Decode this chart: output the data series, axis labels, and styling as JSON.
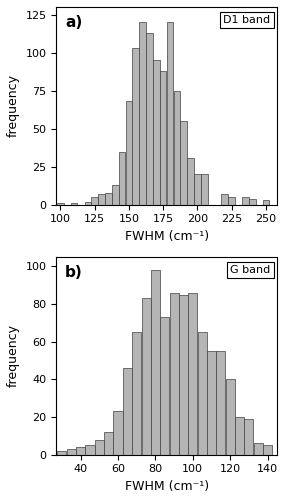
{
  "d1_bin_centers": [
    100,
    105,
    110,
    115,
    120,
    125,
    130,
    135,
    140,
    145,
    150,
    155,
    160,
    165,
    170,
    175,
    180,
    185,
    190,
    195,
    200,
    205,
    210,
    215,
    220,
    225,
    230,
    235,
    240,
    245,
    250
  ],
  "d1_counts": [
    1,
    0,
    1,
    0,
    2,
    5,
    7,
    8,
    13,
    35,
    68,
    103,
    120,
    113,
    95,
    88,
    120,
    75,
    55,
    31,
    20,
    20,
    0,
    0,
    7,
    5,
    0,
    5,
    4,
    0,
    3
  ],
  "d1_xlim": [
    97,
    258
  ],
  "d1_ylim": [
    0,
    130
  ],
  "d1_yticks": [
    0,
    25,
    50,
    75,
    100,
    125
  ],
  "d1_xticks": [
    100,
    125,
    150,
    175,
    200,
    225,
    250
  ],
  "d1_label": "D1 band",
  "d1_sublabel": "a)",
  "g_bin_centers": [
    30,
    35,
    40,
    45,
    50,
    55,
    60,
    65,
    70,
    75,
    80,
    85,
    90,
    95,
    100,
    105,
    110,
    115,
    120,
    125,
    130,
    135,
    140
  ],
  "g_counts": [
    2,
    3,
    4,
    5,
    8,
    12,
    23,
    46,
    65,
    83,
    98,
    73,
    86,
    85,
    86,
    65,
    55,
    55,
    40,
    20,
    19,
    6,
    5
  ],
  "g_xlim": [
    27,
    145
  ],
  "g_ylim": [
    0,
    105
  ],
  "g_yticks": [
    0,
    20,
    40,
    60,
    80,
    100
  ],
  "g_xticks": [
    40,
    60,
    80,
    100,
    120,
    140
  ],
  "g_label": "G band",
  "g_sublabel": "b)",
  "bar_color": "#b5b5b5",
  "bar_edgecolor": "#404040",
  "bin_width": 5,
  "xlabel": "FWHM (cm⁻¹)",
  "ylabel": "frequency",
  "bg_color": "#ffffff",
  "fontsize": 8,
  "label_fontsize": 9,
  "sublabel_fontsize": 11
}
